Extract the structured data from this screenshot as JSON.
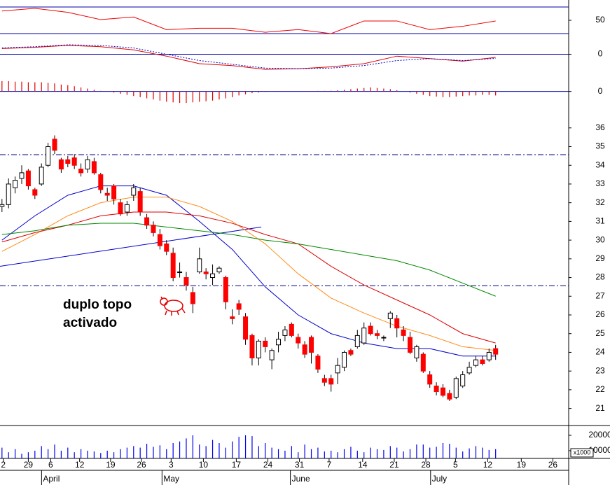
{
  "chart_data": [
    {
      "type": "candlestick",
      "open": [
        31.8,
        31.9,
        32.8,
        33.3,
        33.7,
        32.7,
        33.0,
        34.0,
        35.4,
        34.3,
        34.3,
        34.4,
        33.8,
        33.8,
        34.2,
        33.5,
        32.5,
        32.9,
        32.0,
        31.5,
        32.4,
        32.6,
        31.2,
        30.8,
        30.3,
        29.8,
        29.3,
        28.3,
        28.0,
        27.2,
        28.3,
        28.3,
        28.0,
        28.3,
        28.0,
        25.9,
        26.6,
        25.9,
        24.9,
        23.7,
        24.6,
        23.6,
        24.4,
        24.9,
        25.5,
        24.8,
        24.4,
        24.8,
        23.8,
        22.6,
        22.6,
        22.9,
        23.2,
        24.1,
        24.3,
        24.5,
        25.4,
        25.0,
        24.8,
        25.8,
        25.8,
        25.2,
        24.8,
        23.7,
        23.9,
        22.8,
        22.2,
        22.1,
        21.8,
        21.6,
        22.2,
        22.9,
        23.3,
        23.6,
        23.6,
        24.2
      ],
      "high": [
        32.2,
        33.3,
        33.4,
        34.0,
        33.8,
        32.8,
        34.1,
        35.2,
        35.6,
        34.4,
        34.5,
        34.6,
        34.1,
        34.5,
        34.4,
        33.6,
        32.8,
        33.0,
        32.2,
        32.1,
        33.0,
        32.8,
        31.4,
        31.0,
        30.6,
        30.0,
        29.6,
        28.8,
        28.3,
        27.5,
        29.6,
        28.5,
        28.7,
        28.6,
        28.1,
        26.3,
        26.8,
        26.1,
        25.0,
        24.7,
        24.8,
        24.2,
        25.1,
        25.4,
        25.6,
        25.0,
        24.6,
        24.9,
        23.9,
        22.8,
        22.8,
        23.7,
        24.1,
        24.2,
        25.2,
        25.6,
        25.6,
        25.2,
        24.9,
        26.2,
        26.0,
        25.4,
        25.1,
        24.4,
        24.0,
        23.0,
        22.4,
        22.3,
        22.0,
        22.7,
        23.0,
        23.5,
        23.8,
        23.8,
        24.2,
        24.4
      ],
      "low": [
        31.5,
        31.7,
        32.5,
        33.0,
        32.7,
        32.2,
        32.9,
        33.9,
        34.6,
        33.6,
        33.9,
        33.8,
        33.4,
        33.6,
        33.5,
        32.5,
        32.1,
        31.9,
        31.3,
        31.3,
        32.1,
        31.3,
        30.6,
        30.2,
        29.5,
        29.2,
        27.8,
        28.0,
        27.3,
        26.1,
        28.2,
        27.9,
        27.6,
        28.2,
        26.3,
        25.5,
        26.0,
        24.4,
        23.3,
        23.3,
        24.0,
        23.1,
        24.0,
        24.6,
        24.8,
        24.2,
        23.7,
        23.4,
        22.9,
        22.2,
        21.9,
        22.3,
        23.0,
        23.8,
        24.2,
        24.4,
        24.9,
        24.7,
        24.6,
        25.3,
        24.8,
        24.6,
        23.9,
        23.5,
        22.9,
        22.1,
        21.7,
        21.6,
        21.4,
        21.5,
        22.1,
        22.8,
        23.2,
        23.3,
        23.5,
        23.6
      ],
      "close": [
        31.9,
        33.0,
        33.2,
        33.6,
        32.9,
        32.4,
        33.9,
        35.0,
        34.8,
        33.8,
        34.1,
        34.0,
        33.6,
        34.3,
        33.6,
        32.7,
        32.4,
        32.2,
        31.4,
        31.9,
        32.8,
        31.5,
        30.8,
        30.4,
        29.7,
        29.4,
        28.0,
        28.3,
        27.6,
        26.6,
        29.0,
        28.2,
        28.2,
        28.5,
        26.7,
        25.8,
        26.3,
        24.7,
        23.7,
        24.6,
        24.3,
        24.1,
        24.7,
        25.2,
        24.9,
        24.5,
        23.9,
        24.0,
        23.1,
        22.4,
        22.3,
        23.3,
        24.0,
        23.9,
        24.9,
        25.3,
        25.0,
        24.9,
        24.8,
        26.1,
        25.3,
        24.9,
        24.0,
        24.3,
        23.0,
        22.3,
        21.9,
        21.7,
        21.5,
        22.6,
        22.8,
        23.2,
        23.6,
        23.4,
        24.0,
        23.9
      ],
      "up_color": "#ffffff",
      "down_color": "#ff0000",
      "xlim": [
        -0.3,
        86.1
      ],
      "ylim": [
        20.2,
        37.6
      ],
      "yticks": [
        21,
        22,
        23,
        24,
        25,
        26,
        27,
        28,
        29,
        30,
        31,
        32,
        33,
        34,
        35,
        36
      ],
      "xticks": [
        {
          "value": 0.2,
          "label": "2"
        },
        {
          "value": 4.0,
          "label": "29"
        },
        {
          "value": 7.4,
          "label": "6"
        },
        {
          "value": 11.8,
          "label": "12"
        },
        {
          "value": 16.5,
          "label": "19"
        },
        {
          "value": 21.2,
          "label": "26"
        },
        {
          "value": 25.7,
          "label": "3"
        },
        {
          "value": 30.6,
          "label": "10"
        },
        {
          "value": 35.6,
          "label": "17"
        },
        {
          "value": 40.4,
          "label": "24"
        },
        {
          "value": 45.2,
          "label": "31"
        },
        {
          "value": 49.7,
          "label": "7"
        },
        {
          "value": 54.8,
          "label": "14"
        },
        {
          "value": 59.6,
          "label": "21"
        },
        {
          "value": 64.4,
          "label": "28"
        },
        {
          "value": 68.9,
          "label": "5"
        },
        {
          "value": 73.8,
          "label": "12"
        },
        {
          "value": 78.9,
          "label": "19"
        },
        {
          "value": 83.7,
          "label": "26"
        }
      ],
      "month_ticks": [
        {
          "value": 7.4,
          "label": "April"
        },
        {
          "value": 25.7,
          "label": "May"
        },
        {
          "value": 45.2,
          "label": "June"
        },
        {
          "value": 66.5,
          "label": "July"
        }
      ],
      "series": [
        {
          "color": "#0000cc",
          "x": [
            0,
            5,
            10,
            15,
            20,
            25,
            30,
            35,
            40,
            45,
            50,
            55,
            60,
            65,
            70,
            75
          ],
          "values": [
            30.0,
            31.3,
            32.4,
            32.9,
            32.9,
            32.4,
            31.0,
            29.5,
            27.5,
            26.0,
            25.0,
            24.5,
            24.2,
            24.2,
            23.8,
            23.8
          ]
        },
        {
          "color": "#ff8c1a",
          "x": [
            0,
            5,
            10,
            15,
            20,
            25,
            30,
            35,
            40,
            45,
            50,
            55,
            60,
            65,
            70,
            75
          ],
          "values": [
            29.4,
            30.3,
            31.3,
            32.0,
            32.3,
            32.3,
            31.8,
            31.0,
            29.8,
            28.2,
            26.9,
            26.1,
            25.4,
            24.9,
            24.3,
            24.1
          ]
        },
        {
          "color": "#dd0000",
          "x": [
            0,
            5,
            10,
            15,
            20,
            25,
            30,
            35,
            40,
            45,
            50,
            55,
            60,
            65,
            70,
            75
          ],
          "values": [
            29.9,
            30.4,
            30.8,
            31.3,
            31.5,
            31.5,
            31.3,
            30.9,
            30.3,
            29.8,
            28.6,
            27.6,
            26.8,
            26.0,
            25.0,
            24.5
          ]
        },
        {
          "color": "#008800",
          "x": [
            0,
            5,
            10,
            15,
            20,
            25,
            30,
            35,
            40,
            45,
            50,
            55,
            60,
            65,
            70,
            75
          ],
          "values": [
            30.3,
            30.5,
            30.8,
            30.9,
            30.9,
            30.7,
            30.5,
            30.3,
            30.0,
            29.8,
            29.5,
            29.2,
            28.9,
            28.4,
            27.7,
            27.0
          ]
        }
      ],
      "hlines": [
        34.57,
        27.56
      ],
      "hline_color": "#000080",
      "trendline": {
        "color": "#0000cc",
        "x": [
          -0.3,
          39.4
        ],
        "values": [
          28.6,
          30.7
        ]
      },
      "annotation": [
        "duplo topo",
        "activado"
      ],
      "annotation_color": "#ee0000"
    },
    {
      "type": "line",
      "x": [
        0,
        5,
        10,
        15,
        20,
        25,
        30,
        35,
        40,
        45,
        50,
        55,
        60,
        65,
        70,
        75
      ],
      "values": [
        64,
        68,
        62,
        51,
        55,
        36,
        38,
        38,
        32,
        36,
        30,
        49,
        49,
        36,
        41,
        49
      ],
      "color": "#ee0000",
      "ylim": [
        17.4,
        80.5
      ],
      "yticks": [
        50
      ],
      "levels": [
        70,
        30
      ],
      "level_color": "#0000aa"
    },
    {
      "type": "line",
      "ylim": [
        -1.9,
        1.3
      ],
      "yticks": [
        0
      ],
      "levels": [
        0
      ],
      "level_color": "#0000aa",
      "series": [
        {
          "color": "#dd0000",
          "dashed": false,
          "x": [
            0,
            5,
            10,
            15,
            20,
            25,
            30,
            35,
            40,
            45,
            50,
            55,
            60,
            65,
            70,
            75
          ],
          "values": [
            0.54,
            0.66,
            0.84,
            0.72,
            0.42,
            -0.18,
            -0.9,
            -1.08,
            -1.44,
            -1.38,
            -1.2,
            -0.9,
            -0.18,
            -0.42,
            -0.66,
            -0.3
          ]
        },
        {
          "color": "#0000cc",
          "dashed": true,
          "x": [
            0,
            5,
            10,
            15,
            20,
            25,
            30,
            35,
            40,
            45,
            50,
            55,
            60,
            65,
            70,
            75
          ],
          "values": [
            0.6,
            0.72,
            0.9,
            0.84,
            0.6,
            0.0,
            -0.6,
            -0.96,
            -1.32,
            -1.38,
            -1.32,
            -1.08,
            -0.6,
            -0.42,
            -0.6,
            -0.4
          ]
        }
      ]
    },
    {
      "type": "bar",
      "color": "#dd0000",
      "ylim": [
        -1.3,
        1.5
      ],
      "yticks": [
        0
      ],
      "levels": [
        0
      ],
      "level_color": "#0000aa",
      "values": [
        0.9,
        0.9,
        0.85,
        0.85,
        0.8,
        0.8,
        0.8,
        0.75,
        0.7,
        0.6,
        0.55,
        0.45,
        0.35,
        0.25,
        0.15,
        0.05,
        0.02,
        -0.1,
        -0.2,
        -0.3,
        -0.4,
        -0.5,
        -0.6,
        -0.7,
        -0.8,
        -0.9,
        -0.95,
        -1.0,
        -1.0,
        -0.95,
        -0.9,
        -0.85,
        -0.8,
        -0.7,
        -0.6,
        -0.5,
        -0.35,
        -0.25,
        -0.15,
        -0.1,
        -0.05,
        -0.02,
        0.02,
        0.03,
        0.02,
        0.02,
        0.03,
        0.04,
        0.05,
        0.05,
        0.06,
        0.1,
        0.15,
        0.2,
        0.25,
        0.3,
        0.35,
        0.3,
        0.25,
        0.2,
        0.1,
        0.0,
        -0.1,
        -0.2,
        -0.3,
        -0.4,
        -0.45,
        -0.5,
        -0.5,
        -0.45,
        -0.4,
        -0.35,
        -0.35,
        -0.3,
        -0.3,
        -0.35
      ]
    },
    {
      "type": "bar",
      "color": "#0000ee",
      "ylim": [
        5000,
        25900
      ],
      "yticks": [
        20000,
        10000
      ],
      "unit_label": "x1000",
      "values": [
        12000,
        9000,
        11000,
        8000,
        9000,
        10000,
        13000,
        11000,
        14000,
        10000,
        12000,
        9000,
        11000,
        10000,
        9500,
        8500,
        10000,
        9000,
        11000,
        12000,
        13000,
        12000,
        14500,
        12500,
        13500,
        11000,
        15000,
        16000,
        18000,
        20000,
        14000,
        13000,
        17000,
        15000,
        12000,
        16000,
        19000,
        20000,
        19500,
        13000,
        15000,
        12000,
        11000,
        10000,
        13000,
        9000,
        14000,
        11000,
        12000,
        9500,
        10000,
        9000,
        11000,
        12500,
        10000,
        9000,
        12000,
        11000,
        10500,
        13000,
        12000,
        9500,
        11000,
        14000,
        14000,
        12000,
        12500,
        15000,
        14500,
        12000,
        9500,
        11500,
        13000,
        12000,
        10500,
        11000
      ]
    }
  ]
}
